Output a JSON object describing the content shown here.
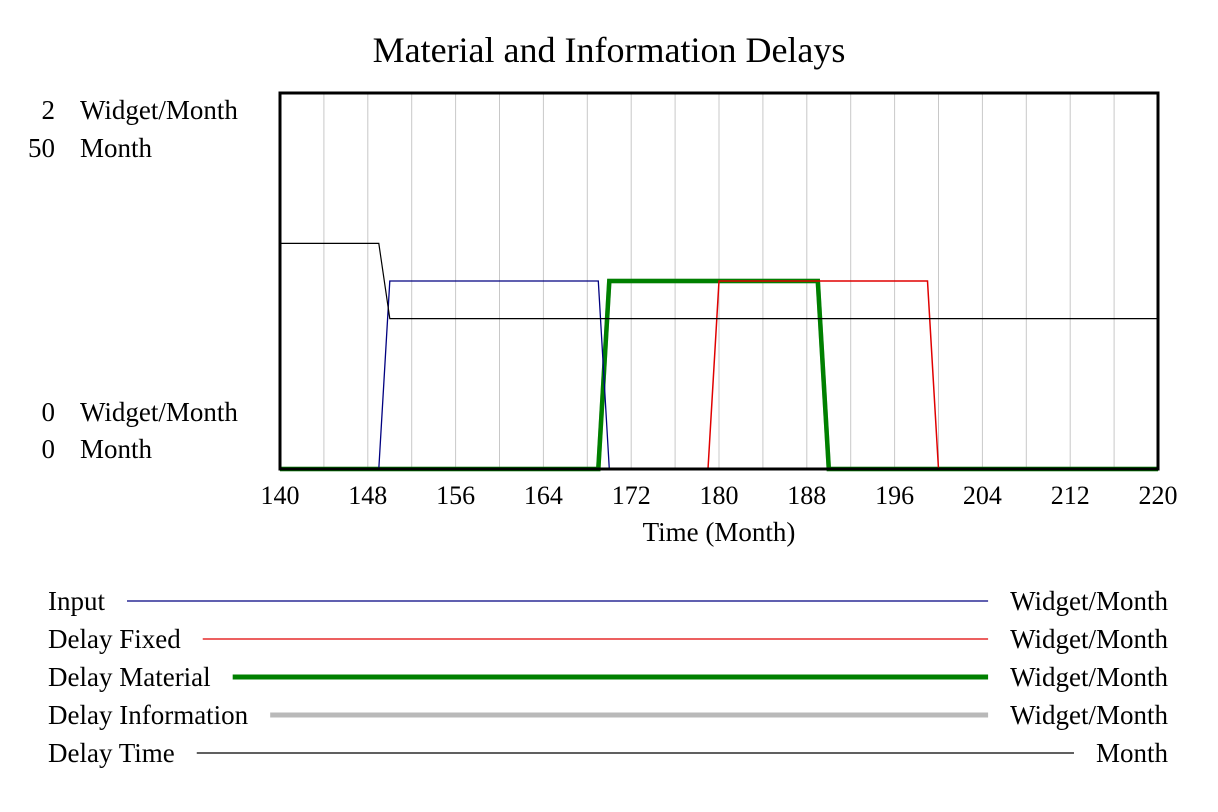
{
  "chart_data": {
    "type": "line",
    "title": "Material and Information Delays",
    "xlabel": "Time (Month)",
    "xlim": [
      140,
      220
    ],
    "x_ticks": [
      140,
      148,
      156,
      164,
      172,
      180,
      188,
      196,
      204,
      212,
      220
    ],
    "grid": true,
    "legend_placement": "bottom",
    "left_axes": [
      {
        "max_label": "2",
        "max_unit": "Widget/Month",
        "min_label": "0",
        "min_unit": "Widget/Month",
        "ylim": [
          0,
          2
        ]
      },
      {
        "max_label": "50",
        "max_unit": "Month",
        "min_label": "0",
        "min_unit": "Month",
        "ylim": [
          0,
          50
        ]
      }
    ],
    "series": [
      {
        "name": "Input",
        "unit": "Widget/Month",
        "color": "#000080",
        "width": 1.3,
        "axis": 0,
        "points": [
          [
            140,
            0
          ],
          [
            149,
            0
          ],
          [
            150,
            1
          ],
          [
            169,
            1
          ],
          [
            170,
            0
          ],
          [
            220,
            0
          ]
        ]
      },
      {
        "name": "Delay Fixed",
        "unit": "Widget/Month",
        "color": "#e00000",
        "width": 1.5,
        "axis": 0,
        "points": [
          [
            140,
            0
          ],
          [
            179,
            0
          ],
          [
            180,
            1
          ],
          [
            199,
            1
          ],
          [
            200,
            0
          ],
          [
            220,
            0
          ]
        ]
      },
      {
        "name": "Delay Material",
        "unit": "Widget/Month",
        "color": "#008000",
        "width": 4.5,
        "axis": 0,
        "points": [
          [
            140,
            0
          ],
          [
            169,
            0
          ],
          [
            170,
            1
          ],
          [
            189,
            1
          ],
          [
            190,
            0
          ],
          [
            220,
            0
          ]
        ]
      },
      {
        "name": "Delay Information",
        "unit": "Widget/Month",
        "color": "#808080",
        "width": 4.5,
        "axis": 0,
        "points": [
          [
            140,
            0
          ],
          [
            169,
            0
          ],
          [
            170,
            1
          ],
          [
            189,
            1
          ],
          [
            190,
            0
          ],
          [
            220,
            0
          ]
        ]
      },
      {
        "name": "Delay Time",
        "unit": "Month",
        "color": "#000000",
        "width": 1.2,
        "axis": 1,
        "points": [
          [
            140,
            30
          ],
          [
            149,
            30
          ],
          [
            150,
            20
          ],
          [
            220,
            20
          ]
        ]
      }
    ]
  }
}
